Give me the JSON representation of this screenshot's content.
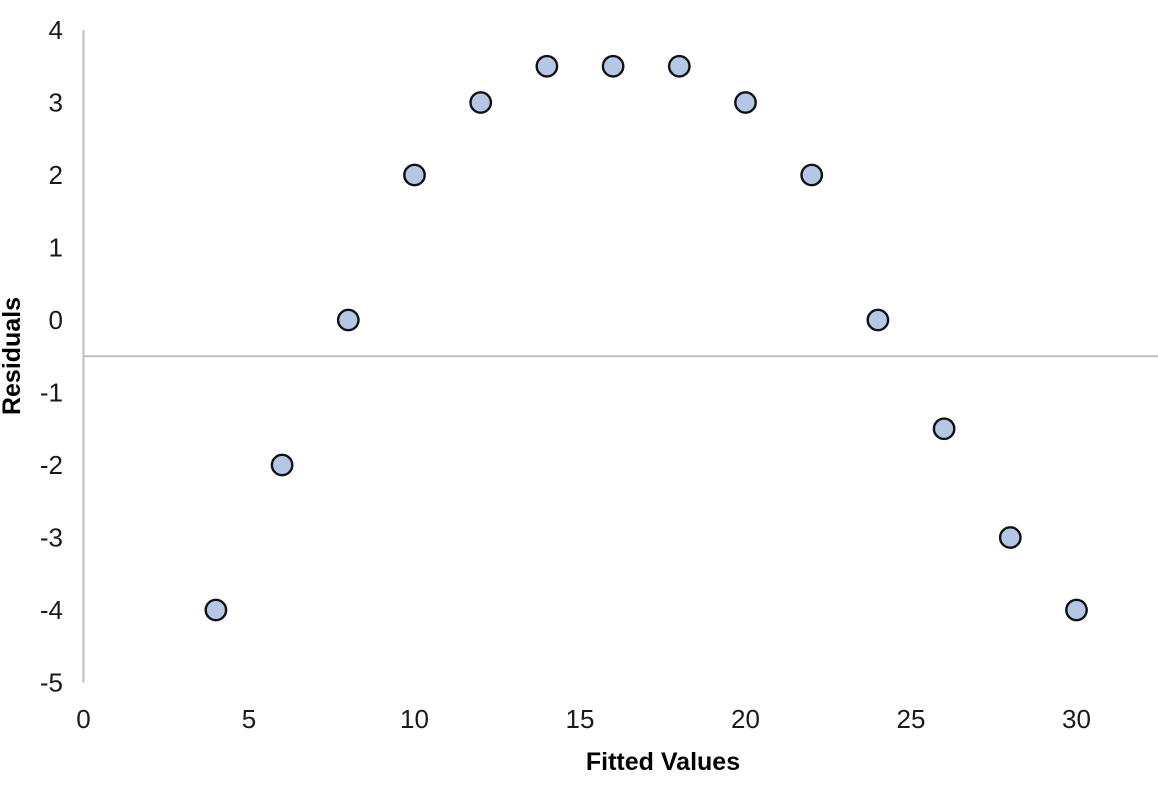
{
  "chart_data": {
    "type": "scatter",
    "title": "",
    "xlabel": "Fitted Values",
    "ylabel": "Residuals",
    "x": [
      4,
      6,
      8,
      10,
      12,
      14,
      16,
      18,
      20,
      22,
      24,
      26,
      28,
      30
    ],
    "y": [
      -4,
      -2,
      0,
      2,
      3,
      3.5,
      3.5,
      3.5,
      3,
      2,
      0,
      -1.5,
      -3,
      -4
    ],
    "xticks": [
      0,
      5,
      10,
      15,
      20,
      25,
      30
    ],
    "yticks": [
      4,
      3,
      2,
      1,
      0,
      -1,
      -2,
      -3,
      -4,
      -5
    ],
    "xlim": [
      0,
      32.5
    ],
    "ylim": [
      -5,
      4
    ],
    "x_axis_crosses_at_y": -0.5,
    "grid": false,
    "legend": "none",
    "marker_fill": "#b4c7e7",
    "marker_stroke": "#111111",
    "axis_line_color": "#bfbfbf",
    "background": "#ffffff"
  }
}
